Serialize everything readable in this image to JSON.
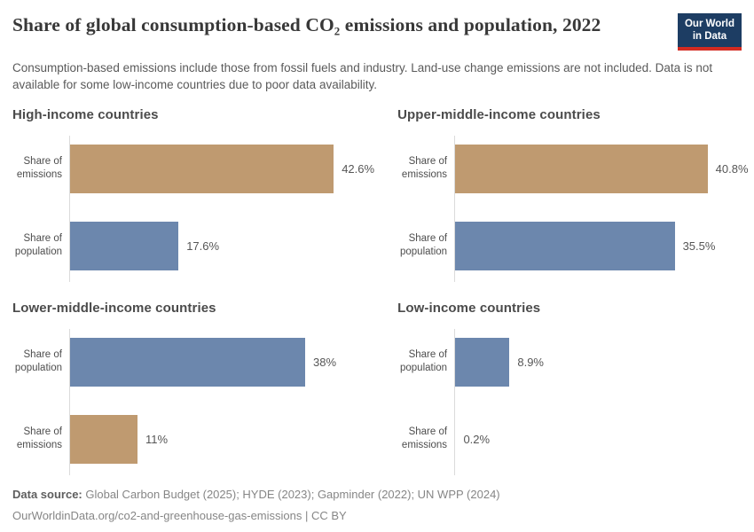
{
  "header": {
    "title": "Share of global consumption-based CO₂ emissions and population, 2022",
    "subtitle": "Consumption-based emissions include those from fossil fuels and industry. Land-use change emissions are not included. Data is not available for some low-income countries due to poor data availability."
  },
  "logo": {
    "line1": "Our World",
    "line2": "in Data",
    "bg_color": "#1d3d63",
    "accent_color": "#d42b21"
  },
  "chart_data": {
    "type": "bar",
    "orientation": "horizontal",
    "unit": "%",
    "year": "2022",
    "xlim": [
      0,
      50
    ],
    "grid": false,
    "axis_ticks": "hidden",
    "value_labels": "outside-end",
    "colors": {
      "emissions": "#BF9A70",
      "population": "#6C87AD"
    },
    "panels": [
      {
        "title": "High-income countries",
        "bars": [
          {
            "label": "Share of emissions",
            "series": "emissions",
            "value": 42.6,
            "value_label": "42.6%"
          },
          {
            "label": "Share of population",
            "series": "population",
            "value": 17.6,
            "value_label": "17.6%"
          }
        ]
      },
      {
        "title": "Upper-middle-income countries",
        "bars": [
          {
            "label": "Share of emissions",
            "series": "emissions",
            "value": 40.8,
            "value_label": "40.8%"
          },
          {
            "label": "Share of population",
            "series": "population",
            "value": 35.5,
            "value_label": "35.5%"
          }
        ]
      },
      {
        "title": "Lower-middle-income countries",
        "bars": [
          {
            "label": "Share of population",
            "series": "population",
            "value": 38,
            "value_label": "38%"
          },
          {
            "label": "Share of emissions",
            "series": "emissions",
            "value": 11,
            "value_label": "11%"
          }
        ]
      },
      {
        "title": "Low-income countries",
        "bars": [
          {
            "label": "Share of population",
            "series": "population",
            "value": 8.9,
            "value_label": "8.9%"
          },
          {
            "label": "Share of emissions",
            "series": "emissions",
            "value": 0.2,
            "value_label": "0.2%"
          }
        ]
      }
    ]
  },
  "footer": {
    "source_label": "Data source:",
    "sources": " Global Carbon Budget (2025); HYDE (2023); Gapminder (2022); UN WPP (2024)",
    "link": "OurWorldinData.org/co2-and-greenhouse-gas-emissions | CC BY"
  }
}
